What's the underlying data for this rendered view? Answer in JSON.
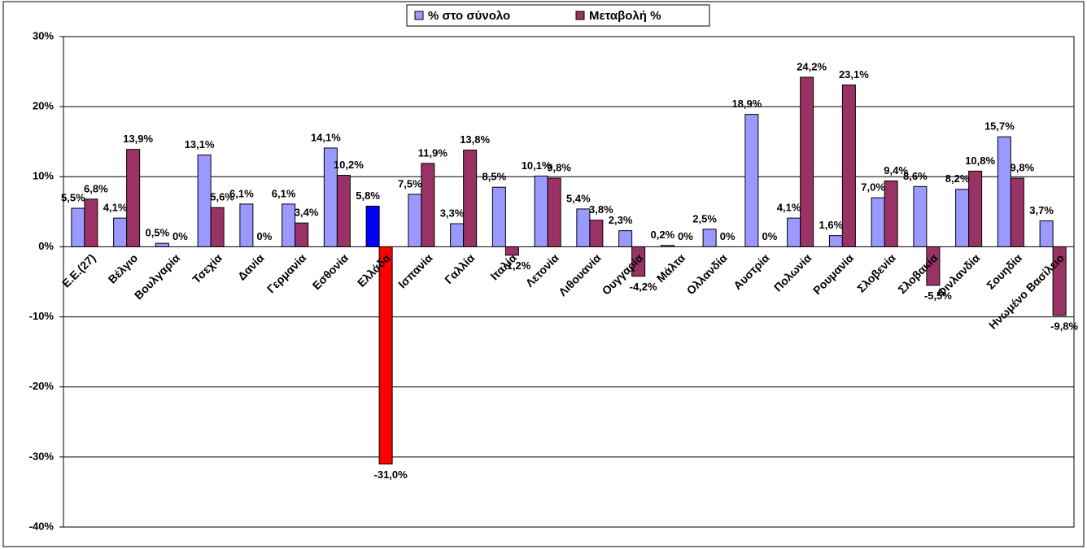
{
  "chart_data": {
    "type": "bar",
    "categories": [
      "Ε.Ε.(27)",
      "Βέλγιο",
      "Βουλγαρία",
      "Τσεχία",
      "Δανία",
      "Γερμανία",
      "Εσθονία",
      "Ελλάδα",
      "Ισπανία",
      "Γαλλία",
      "Ιταλία",
      "Λετονία",
      "Λιθουανία",
      "Ουγγαρία",
      "Μάλτα",
      "Ολλανδία",
      "Αυστρία",
      "Πολωνία",
      "Ρουμανία",
      "Σλοβενία",
      "Σλοβακία",
      "Φινλανδία",
      "Σουηδία",
      "Ηνωμένο Βασίλειο"
    ],
    "series": [
      {
        "name": "% στο σύνολο",
        "color": "#9999ff",
        "colors": [
          "#9999ff",
          "#9999ff",
          "#9999ff",
          "#9999ff",
          "#9999ff",
          "#9999ff",
          "#9999ff",
          "#0000ff",
          "#9999ff",
          "#9999ff",
          "#9999ff",
          "#9999ff",
          "#9999ff",
          "#9999ff",
          "#9999ff",
          "#9999ff",
          "#9999ff",
          "#9999ff",
          "#9999ff",
          "#9999ff",
          "#9999ff",
          "#9999ff",
          "#9999ff",
          "#9999ff"
        ],
        "values": [
          5.5,
          4.1,
          0.5,
          13.1,
          6.1,
          6.1,
          14.1,
          5.8,
          7.5,
          3.3,
          8.5,
          10.1,
          5.4,
          2.3,
          0.2,
          2.5,
          18.9,
          4.1,
          1.6,
          7.0,
          8.6,
          8.2,
          15.7,
          3.7
        ],
        "value_labels": [
          "5,5%",
          "4,1%",
          "0,5%",
          "13,1%",
          "6,1%",
          "6,1%",
          "14,1%",
          "5,8%",
          "7,5%",
          "3,3%",
          "8,5%",
          "10,1%",
          "5,4%",
          "2,3%",
          "0,2%",
          "2,5%",
          "18,9%",
          "4,1%",
          "1,6%",
          "7,0%",
          "8,6%",
          "8,2%",
          "15,7%",
          "3,7%"
        ]
      },
      {
        "name": "Μεταβολή %",
        "color": "#993366",
        "colors": [
          "#993366",
          "#993366",
          "#993366",
          "#993366",
          "#993366",
          "#993366",
          "#993366",
          "#ff0000",
          "#993366",
          "#993366",
          "#993366",
          "#993366",
          "#993366",
          "#993366",
          "#993366",
          "#993366",
          "#993366",
          "#993366",
          "#993366",
          "#993366",
          "#993366",
          "#993366",
          "#993366",
          "#993366"
        ],
        "values": [
          6.8,
          13.9,
          0,
          5.6,
          0,
          3.4,
          10.2,
          -31.0,
          11.9,
          13.8,
          -1.2,
          9.8,
          3.8,
          -4.2,
          0,
          0,
          0,
          24.2,
          23.1,
          9.4,
          -5.5,
          10.8,
          9.8,
          -9.8
        ],
        "value_labels": [
          "6,8%",
          "13,9%",
          "0%",
          "5,6%",
          "0%",
          "3,4%",
          "10,2%",
          "-31,0%",
          "11,9%",
          "13,8%",
          "-1,2%",
          "9,8%",
          "3,8%",
          "-4,2%",
          "0%",
          "0%",
          "0%",
          "24,2%",
          "23,1%",
          "9,4%",
          "-5,5%",
          "10,8%",
          "9,8%",
          "-9,8%"
        ]
      }
    ],
    "ylim": [
      -40,
      30
    ],
    "yticks": [
      {
        "value": -40,
        "label": "-40%"
      },
      {
        "value": -30,
        "label": "-30%"
      },
      {
        "value": -20,
        "label": "-20%"
      },
      {
        "value": -10,
        "label": "-10%"
      },
      {
        "value": 0,
        "label": "0%"
      },
      {
        "value": 10,
        "label": "10%"
      },
      {
        "value": 20,
        "label": "20%"
      },
      {
        "value": 30,
        "label": "30%"
      }
    ],
    "grid": true,
    "legend": "top"
  }
}
